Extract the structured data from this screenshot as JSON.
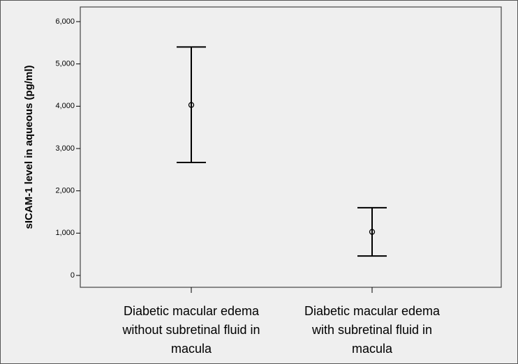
{
  "chart_data": {
    "type": "errorbar",
    "y_label": "sICAM-1 level in aqueous (pg/ml)",
    "categories": [
      [
        "Diabetic macular edema",
        "without subretinal fluid in",
        "macula"
      ],
      [
        "Diabetic macular edema",
        "with subretinal fluid in",
        "macula"
      ]
    ],
    "values": [
      4030,
      1030
    ],
    "lower": [
      2670,
      460
    ],
    "upper": [
      5400,
      1600
    ],
    "color": "#000000",
    "ylim": [
      0,
      6000
    ],
    "yticks": [
      0,
      {
        "value": 1000,
        "label": "1,000"
      },
      {
        "value": 2000,
        "label": "2,000"
      },
      {
        "value": 3000,
        "label": "3,000"
      },
      {
        "value": 4000,
        "label": "4,000"
      },
      {
        "value": 5000,
        "label": "5,000"
      },
      {
        "value": 6000,
        "label": "6,000"
      }
    ],
    "grid": false
  }
}
